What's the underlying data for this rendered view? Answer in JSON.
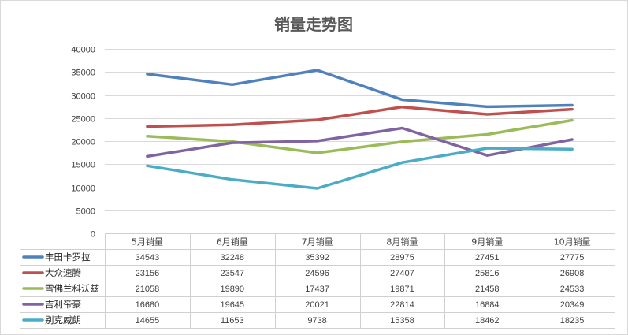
{
  "chart_data": {
    "type": "line",
    "title": "销量走势图",
    "xlabel": "",
    "ylabel": "",
    "ylim": [
      0,
      40000
    ],
    "y_ticks": [
      0,
      5000,
      10000,
      15000,
      20000,
      25000,
      30000,
      35000,
      40000
    ],
    "grid": true,
    "legend": "data-table-bottom",
    "categories": [
      "5月销量",
      "6月销量",
      "7月销量",
      "8月销量",
      "9月销量",
      "10月销量"
    ],
    "series": [
      {
        "name": "丰田卡罗拉",
        "color": "#4f81bd",
        "values": [
          34543,
          32248,
          35392,
          28975,
          27451,
          27775
        ]
      },
      {
        "name": "大众速腾",
        "color": "#c0504d",
        "values": [
          23156,
          23547,
          24596,
          27407,
          25816,
          26908
        ]
      },
      {
        "name": "雪佛兰科沃兹",
        "color": "#9bbb59",
        "values": [
          21058,
          19890,
          17437,
          19871,
          21458,
          24533
        ]
      },
      {
        "name": "吉利帝豪",
        "color": "#8064a2",
        "values": [
          16680,
          19645,
          20021,
          22814,
          16884,
          20349
        ]
      },
      {
        "name": "别克威朗",
        "color": "#4bacc6",
        "values": [
          14655,
          11653,
          9738,
          15358,
          18462,
          18235
        ]
      }
    ]
  }
}
